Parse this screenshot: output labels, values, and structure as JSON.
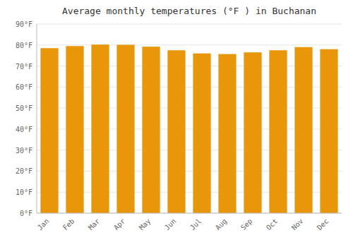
{
  "chart_data": {
    "type": "bar",
    "title": "Average monthly temperatures (°F ) in Buchanan",
    "categories": [
      "Jan",
      "Feb",
      "Mar",
      "Apr",
      "May",
      "Jun",
      "Jul",
      "Aug",
      "Sep",
      "Oct",
      "Nov",
      "Dec"
    ],
    "values": [
      78.5,
      79.5,
      80.2,
      80.1,
      79.2,
      77.5,
      76.0,
      75.7,
      76.5,
      77.5,
      79.0,
      78.0
    ],
    "color": "#E8960A",
    "ylim": [
      0,
      90
    ],
    "yticks": [
      {
        "value": 0,
        "label": "0°F"
      },
      {
        "value": 10,
        "label": "10°F"
      },
      {
        "value": 20,
        "label": "20°F"
      },
      {
        "value": 30,
        "label": "30°F"
      },
      {
        "value": 40,
        "label": "40°F"
      },
      {
        "value": 50,
        "label": "50°F"
      },
      {
        "value": 60,
        "label": "60°F"
      },
      {
        "value": 70,
        "label": "70°F"
      },
      {
        "value": 80,
        "label": "80°F"
      },
      {
        "value": 90,
        "label": "90°F"
      }
    ],
    "grid": true
  }
}
